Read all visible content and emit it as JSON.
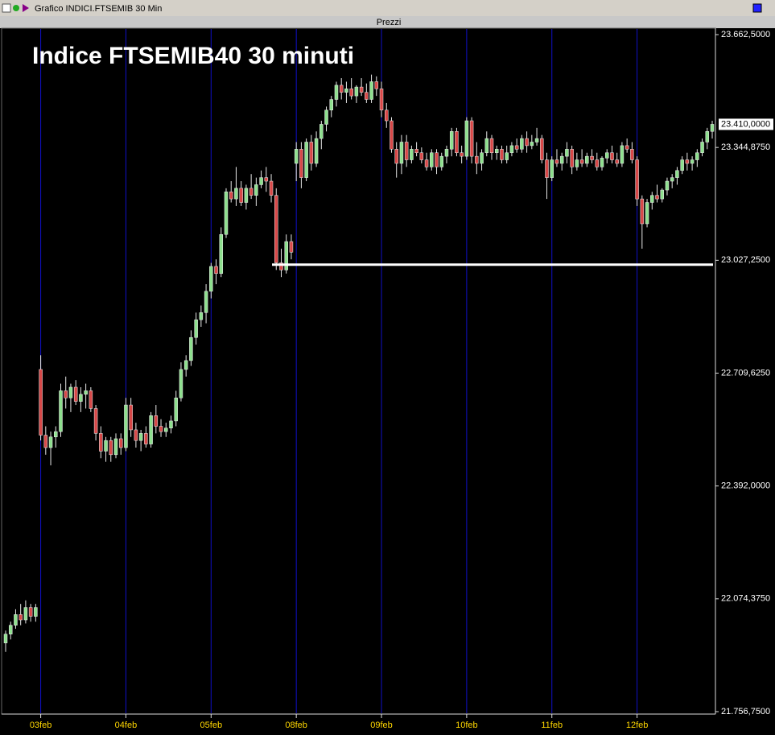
{
  "window_title": "Grafico INDICI.FTSEMIB 30 Min",
  "panel_title": "Prezzi",
  "chart_data": {
    "type": "candlestick",
    "title": "Indice FTSEMIB40 30 minuti",
    "ylim": [
      21756.75,
      23662.5
    ],
    "yticks": [
      {
        "value": 21756.75,
        "label": "21.756,7500"
      },
      {
        "value": 22074.375,
        "label": "22.074,3750"
      },
      {
        "value": 22392,
        "label": "22.392,0000"
      },
      {
        "value": 22709.625,
        "label": "22.709,6250"
      },
      {
        "value": 23027.25,
        "label": "23.027,2500"
      },
      {
        "value": 23662.5,
        "label": "23.662,5000"
      }
    ],
    "price_labels": [
      {
        "value": 23410,
        "label": "23.410,0000",
        "highlight": true
      },
      {
        "value": 23344.875,
        "label": "23.344,8750",
        "highlight": false
      }
    ],
    "hline": 23015,
    "up_color": "#8ee08e",
    "down_color": "#d84848",
    "separator_color": "#1010c8",
    "sessions": [
      {
        "label": null,
        "candles": [
          [
            21950,
            21985,
            21925,
            21975
          ],
          [
            21975,
            22010,
            21960,
            22000
          ],
          [
            22000,
            22045,
            21990,
            22030
          ],
          [
            22030,
            22060,
            22000,
            22015
          ],
          [
            22015,
            22070,
            22005,
            22050
          ],
          [
            22050,
            22060,
            22010,
            22025
          ],
          [
            22025,
            22060,
            22010,
            22050
          ]
        ]
      },
      {
        "label": "03feb",
        "candles": [
          [
            22720,
            22760,
            22520,
            22535
          ],
          [
            22535,
            22560,
            22480,
            22500
          ],
          [
            22500,
            22545,
            22450,
            22530
          ],
          [
            22530,
            22560,
            22500,
            22545
          ],
          [
            22545,
            22680,
            22530,
            22660
          ],
          [
            22660,
            22700,
            22610,
            22640
          ],
          [
            22640,
            22680,
            22600,
            22670
          ],
          [
            22670,
            22690,
            22620,
            22630
          ],
          [
            22630,
            22670,
            22600,
            22650
          ],
          [
            22650,
            22680,
            22610,
            22660
          ],
          [
            22660,
            22670,
            22600,
            22610
          ],
          [
            22610,
            22620,
            22520,
            22540
          ],
          [
            22540,
            22560,
            22470,
            22490
          ],
          [
            22490,
            22530,
            22460,
            22520
          ],
          [
            22520,
            22530,
            22460,
            22480
          ],
          [
            22480,
            22540,
            22470,
            22525
          ],
          [
            22525,
            22540,
            22480,
            22500
          ]
        ]
      },
      {
        "label": "04feb",
        "candles": [
          [
            22500,
            22640,
            22490,
            22620
          ],
          [
            22620,
            22640,
            22530,
            22550
          ],
          [
            22550,
            22570,
            22500,
            22520
          ],
          [
            22520,
            22550,
            22490,
            22540
          ],
          [
            22540,
            22560,
            22500,
            22510
          ],
          [
            22510,
            22600,
            22500,
            22590
          ],
          [
            22590,
            22620,
            22540,
            22560
          ],
          [
            22560,
            22580,
            22530,
            22545
          ],
          [
            22545,
            22570,
            22530,
            22555
          ],
          [
            22555,
            22590,
            22540,
            22575
          ],
          [
            22575,
            22660,
            22560,
            22640
          ],
          [
            22640,
            22740,
            22630,
            22720
          ],
          [
            22720,
            22760,
            22700,
            22745
          ],
          [
            22745,
            22830,
            22730,
            22810
          ],
          [
            22810,
            22880,
            22790,
            22860
          ],
          [
            22860,
            22900,
            22840,
            22880
          ],
          [
            22880,
            22960,
            22850,
            22940
          ]
        ]
      },
      {
        "label": "05feb",
        "candles": [
          [
            22940,
            23020,
            22920,
            23010
          ],
          [
            23010,
            23030,
            22960,
            22990
          ],
          [
            22990,
            23120,
            22980,
            23100
          ],
          [
            23100,
            23230,
            23090,
            23220
          ],
          [
            23220,
            23250,
            23190,
            23200
          ],
          [
            23200,
            23290,
            23180,
            23230
          ],
          [
            23230,
            23250,
            23180,
            23190
          ],
          [
            23190,
            23240,
            23170,
            23230
          ],
          [
            23230,
            23270,
            23200,
            23210
          ],
          [
            23210,
            23260,
            23180,
            23240
          ],
          [
            23240,
            23280,
            23230,
            23260
          ],
          [
            23260,
            23290,
            23220,
            23250
          ],
          [
            23250,
            23270,
            23190,
            23210
          ],
          [
            23210,
            23230,
            23000,
            23020
          ],
          [
            23020,
            23060,
            22980,
            23000
          ],
          [
            23000,
            23100,
            22990,
            23080
          ],
          [
            23080,
            23100,
            23030,
            23050
          ]
        ]
      },
      {
        "label": "08feb",
        "candles": [
          [
            23300,
            23360,
            23250,
            23340
          ],
          [
            23340,
            23360,
            23230,
            23260
          ],
          [
            23260,
            23370,
            23250,
            23360
          ],
          [
            23360,
            23380,
            23280,
            23300
          ],
          [
            23300,
            23390,
            23290,
            23370
          ],
          [
            23370,
            23420,
            23340,
            23410
          ],
          [
            23410,
            23460,
            23390,
            23450
          ],
          [
            23450,
            23490,
            23430,
            23480
          ],
          [
            23480,
            23530,
            23460,
            23520
          ],
          [
            23520,
            23540,
            23480,
            23500
          ],
          [
            23500,
            23530,
            23470,
            23510
          ],
          [
            23510,
            23540,
            23480,
            23490
          ],
          [
            23490,
            23520,
            23470,
            23515
          ],
          [
            23515,
            23540,
            23490,
            23500
          ],
          [
            23500,
            23525,
            23470,
            23480
          ],
          [
            23480,
            23550,
            23470,
            23530
          ],
          [
            23530,
            23545,
            23490,
            23510
          ]
        ]
      },
      {
        "label": "09feb",
        "candles": [
          [
            23510,
            23530,
            23430,
            23450
          ],
          [
            23450,
            23470,
            23400,
            23420
          ],
          [
            23420,
            23430,
            23330,
            23340
          ],
          [
            23340,
            23360,
            23260,
            23300
          ],
          [
            23300,
            23380,
            23270,
            23360
          ],
          [
            23360,
            23380,
            23290,
            23310
          ],
          [
            23310,
            23350,
            23300,
            23340
          ],
          [
            23340,
            23360,
            23320,
            23330
          ],
          [
            23330,
            23345,
            23300,
            23310
          ],
          [
            23310,
            23330,
            23280,
            23290
          ],
          [
            23290,
            23340,
            23280,
            23330
          ],
          [
            23330,
            23340,
            23270,
            23290
          ],
          [
            23290,
            23330,
            23280,
            23320
          ],
          [
            23320,
            23350,
            23300,
            23340
          ],
          [
            23340,
            23400,
            23320,
            23390
          ],
          [
            23390,
            23400,
            23320,
            23330
          ],
          [
            23330,
            23350,
            23300,
            23320
          ]
        ]
      },
      {
        "label": "10feb",
        "candles": [
          [
            23320,
            23430,
            23310,
            23420
          ],
          [
            23420,
            23430,
            23300,
            23320
          ],
          [
            23320,
            23360,
            23270,
            23300
          ],
          [
            23300,
            23340,
            23280,
            23330
          ],
          [
            23330,
            23390,
            23320,
            23370
          ],
          [
            23370,
            23380,
            23310,
            23330
          ],
          [
            23330,
            23350,
            23310,
            23340
          ],
          [
            23340,
            23350,
            23300,
            23310
          ],
          [
            23310,
            23350,
            23300,
            23330
          ],
          [
            23330,
            23360,
            23320,
            23350
          ],
          [
            23350,
            23370,
            23330,
            23340
          ],
          [
            23340,
            23380,
            23330,
            23370
          ],
          [
            23370,
            23390,
            23330,
            23350
          ],
          [
            23350,
            23380,
            23340,
            23360
          ],
          [
            23360,
            23400,
            23350,
            23370
          ],
          [
            23370,
            23380,
            23300,
            23310
          ],
          [
            23310,
            23330,
            23200,
            23260
          ]
        ]
      },
      {
        "label": "11feb",
        "candles": [
          [
            23260,
            23320,
            23250,
            23310
          ],
          [
            23310,
            23340,
            23290,
            23300
          ],
          [
            23300,
            23330,
            23280,
            23320
          ],
          [
            23320,
            23360,
            23300,
            23340
          ],
          [
            23340,
            23350,
            23270,
            23290
          ],
          [
            23290,
            23330,
            23280,
            23310
          ],
          [
            23310,
            23340,
            23290,
            23300
          ],
          [
            23300,
            23330,
            23290,
            23320
          ],
          [
            23320,
            23340,
            23300,
            23310
          ],
          [
            23310,
            23330,
            23280,
            23290
          ],
          [
            23290,
            23320,
            23280,
            23315
          ],
          [
            23315,
            23340,
            23300,
            23330
          ],
          [
            23330,
            23350,
            23300,
            23310
          ],
          [
            23310,
            23330,
            23290,
            23300
          ],
          [
            23300,
            23360,
            23290,
            23350
          ],
          [
            23350,
            23370,
            23330,
            23340
          ],
          [
            23340,
            23360,
            23300,
            23310
          ]
        ]
      },
      {
        "label": "12feb",
        "candles": [
          [
            23310,
            23320,
            23180,
            23200
          ],
          [
            23200,
            23210,
            23060,
            23130
          ],
          [
            23130,
            23200,
            23120,
            23190
          ],
          [
            23190,
            23220,
            23170,
            23210
          ],
          [
            23210,
            23240,
            23190,
            23200
          ],
          [
            23200,
            23230,
            23190,
            23225
          ],
          [
            23225,
            23260,
            23210,
            23250
          ],
          [
            23250,
            23270,
            23230,
            23260
          ],
          [
            23260,
            23290,
            23240,
            23280
          ],
          [
            23280,
            23320,
            23270,
            23310
          ],
          [
            23310,
            23330,
            23280,
            23300
          ],
          [
            23300,
            23320,
            23280,
            23310
          ],
          [
            23310,
            23340,
            23290,
            23330
          ],
          [
            23330,
            23370,
            23320,
            23360
          ],
          [
            23360,
            23400,
            23340,
            23390
          ],
          [
            23390,
            23420,
            23370,
            23410
          ]
        ]
      }
    ]
  }
}
